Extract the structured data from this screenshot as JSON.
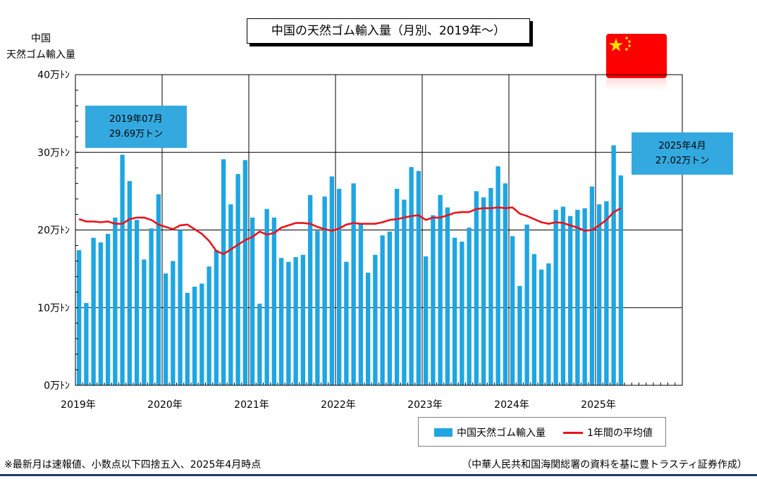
{
  "title": "中国の天然ゴム輸入量（月別、2019年～）",
  "ylabel_line1": "中国",
  "ylabel_line2": "天然ゴム輸入量",
  "callouts": [
    {
      "line1": "2019年07月",
      "line2": "29.69万トン"
    },
    {
      "line1": "2025年4月",
      "line2": "27.02万トン"
    }
  ],
  "legend": {
    "bar_label": "中国天然ゴム輸入量",
    "line_label": "1年間の平均値"
  },
  "footer": {
    "note": "※最新月は速報値、小数点以下四捨五入、2025年4月時点",
    "source": "（中華人民共和国海関総署の資料を基に豊トラスティ証券作成）"
  },
  "flag_icon": "china-flag-icon",
  "chart_data": {
    "type": "bar",
    "bar_color": "#1ea6e2",
    "line_color": "#e8141a",
    "ylim": [
      0,
      40
    ],
    "yticks": [
      0,
      10,
      20,
      30,
      40
    ],
    "ytick_labels": [
      "0万ﾄﾝ",
      "10万ﾄﾝ",
      "20万ﾄﾝ",
      "30万ﾄﾝ",
      "40万ﾄﾝ"
    ],
    "xlim_months": 84,
    "xtick_labels": [
      "2019年",
      "2020年",
      "2021年",
      "2022年",
      "2023年",
      "2024年",
      "2025年"
    ],
    "grid": true,
    "series": [
      {
        "name": "中国天然ゴム輸入量",
        "values": [
          17.4,
          10.6,
          19.0,
          18.4,
          19.5,
          21.6,
          29.69,
          26.3,
          21.3,
          16.2,
          20.2,
          24.6,
          14.4,
          16.0,
          20.0,
          11.9,
          12.7,
          13.1,
          15.3,
          17.4,
          29.1,
          23.3,
          27.2,
          29.0,
          21.6,
          10.5,
          22.7,
          21.6,
          16.4,
          15.9,
          16.5,
          16.8,
          24.5,
          19.9,
          24.3,
          26.9,
          25.3,
          15.9,
          26.0,
          20.9,
          14.5,
          16.8,
          19.3,
          19.8,
          25.3,
          23.9,
          28.1,
          27.6,
          16.6,
          21.9,
          24.5,
          22.9,
          19.0,
          18.5,
          20.3,
          25.0,
          24.2,
          25.4,
          28.2,
          26.0,
          19.2,
          12.8,
          20.7,
          16.9,
          14.9,
          15.7,
          22.6,
          23.0,
          21.8,
          22.6,
          22.8,
          25.6,
          23.3,
          23.7,
          30.9,
          27.02
        ]
      },
      {
        "name": "1年間の平均値",
        "values": [
          21.4,
          21.1,
          21.1,
          21.0,
          21.1,
          20.8,
          20.8,
          21.4,
          21.6,
          21.6,
          21.3,
          20.7,
          20.4,
          20.1,
          20.6,
          20.7,
          20.1,
          19.5,
          18.6,
          17.3,
          16.9,
          17.5,
          18.1,
          18.7,
          19.1,
          19.8,
          19.4,
          19.6,
          20.3,
          20.6,
          20.9,
          20.9,
          20.8,
          20.4,
          20.1,
          19.9,
          20.2,
          20.7,
          20.9,
          20.8,
          20.8,
          20.8,
          21.0,
          21.3,
          21.4,
          21.6,
          21.8,
          21.9,
          21.3,
          21.6,
          21.6,
          21.9,
          22.2,
          22.3,
          22.3,
          22.7,
          22.8,
          22.8,
          22.9,
          22.8,
          22.9,
          22.1,
          21.8,
          21.4,
          21.0,
          20.8,
          21.0,
          20.9,
          20.6,
          20.3,
          19.9,
          20.0,
          20.6,
          21.3,
          22.3,
          22.8
        ]
      }
    ]
  }
}
